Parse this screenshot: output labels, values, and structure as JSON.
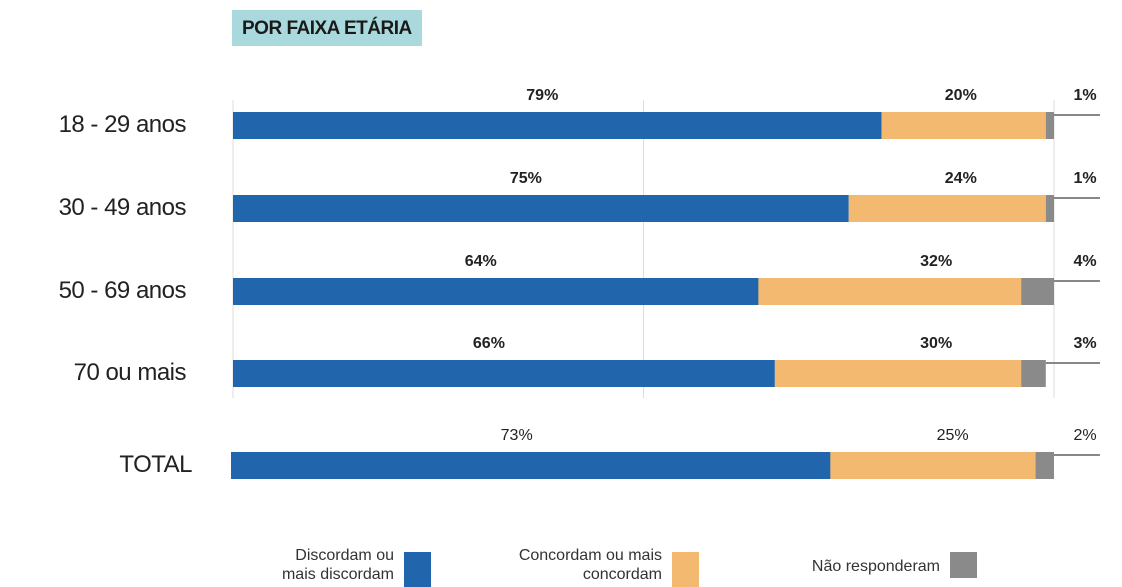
{
  "chart_data": {
    "type": "stacked_barh",
    "title": "POR FAIXA ETÁRIA",
    "categories": [
      "18 - 29 anos",
      "30 - 49 anos",
      "50 - 69 anos",
      "70 ou mais",
      "TOTAL"
    ],
    "series": [
      {
        "name": "Discordam ou mais discordam",
        "color": "#2166ac",
        "values": [
          79,
          75,
          64,
          66,
          73
        ],
        "value_labels": [
          "79%",
          "75%",
          "64%",
          "66%",
          "73%"
        ]
      },
      {
        "name": "Concordam ou mais concordam",
        "color": "#f4b971",
        "values": [
          20,
          24,
          32,
          30,
          25
        ],
        "value_labels": [
          "20%",
          "24%",
          "32%",
          "30%",
          "25%"
        ]
      },
      {
        "name": "Não responderam",
        "color": "#8a8a8a",
        "values": [
          1,
          1,
          4,
          3,
          2
        ],
        "value_labels": [
          "1%",
          "1%",
          "4%",
          "3%",
          "2%"
        ]
      }
    ],
    "xlim": [
      0,
      100
    ],
    "xticks": [
      0,
      50,
      100
    ],
    "grid": true
  }
}
